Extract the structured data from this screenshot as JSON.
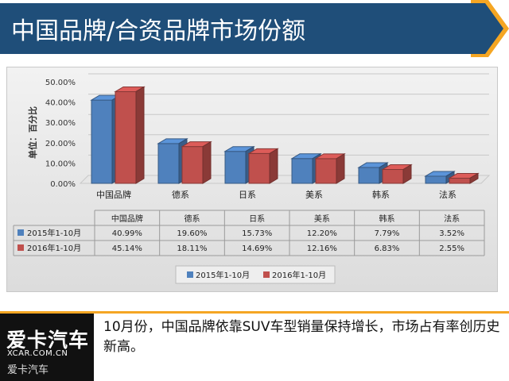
{
  "header": {
    "title": "中国品牌/合资品牌市场份额"
  },
  "colors": {
    "header": "#1f4e79",
    "accent": "#f5a623",
    "series_2015": "#4f81bd",
    "series_2016": "#c0504d"
  },
  "chart_data": {
    "type": "bar",
    "ylabel": "单位：百分比",
    "ylim": [
      0,
      50
    ],
    "yticks": [
      "50.00%",
      "40.00%",
      "30.00%",
      "20.00%",
      "10.00%",
      "0.00%"
    ],
    "categories": [
      "中国品牌",
      "德系",
      "日系",
      "美系",
      "韩系",
      "法系"
    ],
    "series": [
      {
        "name": "2015年1-10月",
        "values": [
          40.99,
          19.6,
          15.73,
          12.2,
          7.79,
          3.52
        ],
        "labels": [
          "40.99%",
          "19.60%",
          "15.73%",
          "12.20%",
          "7.79%",
          "3.52%"
        ],
        "color": "#4f81bd"
      },
      {
        "name": "2016年1-10月",
        "values": [
          45.14,
          18.11,
          14.69,
          12.16,
          6.83,
          2.55
        ],
        "labels": [
          "45.14%",
          "18.11%",
          "14.69%",
          "12.16%",
          "6.83%",
          "2.55%"
        ],
        "color": "#c0504d"
      }
    ],
    "grid": true,
    "legend": "bottom",
    "data_table": true
  },
  "logo": {
    "main": "爱卡汽车",
    "url": "XCAR.COM.CN",
    "cn": "爱卡汽车"
  },
  "caption": "10月份，中国品牌依靠SUV车型销量保持增长，市场占有率创历史新高。"
}
